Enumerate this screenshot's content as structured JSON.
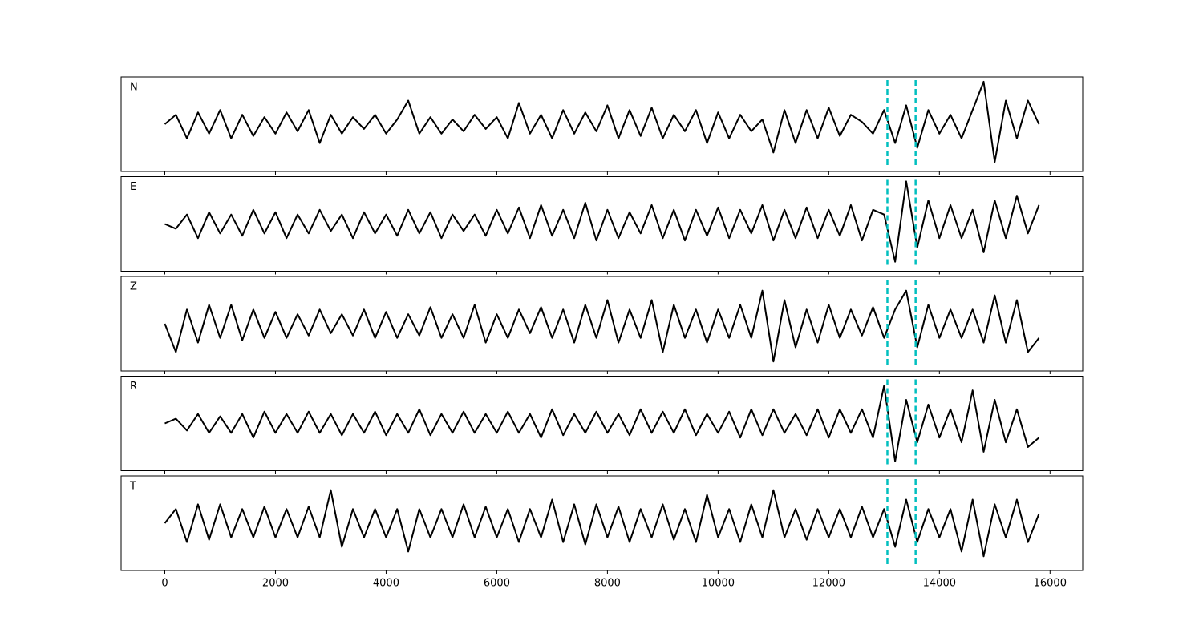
{
  "chart_data": {
    "type": "line",
    "layout": "stacked",
    "x": [
      0,
      200,
      400,
      600,
      800,
      1000,
      1200,
      1400,
      1600,
      1800,
      2000,
      2200,
      2400,
      2600,
      2800,
      3000,
      3200,
      3400,
      3600,
      3800,
      4000,
      4200,
      4400,
      4600,
      4800,
      5000,
      5200,
      5400,
      5600,
      5800,
      6000,
      6200,
      6400,
      6600,
      6800,
      7000,
      7200,
      7400,
      7600,
      7800,
      8000,
      8200,
      8400,
      8600,
      8800,
      9000,
      9200,
      9400,
      9600,
      9800,
      10000,
      10200,
      10400,
      10600,
      10800,
      11000,
      11200,
      11400,
      11600,
      11800,
      12000,
      12200,
      12400,
      12600,
      12800,
      13000,
      13200,
      13400,
      13600,
      13800,
      14000,
      14200,
      14400,
      14600,
      14800,
      15000,
      15200,
      15400,
      15600,
      15800
    ],
    "xlim": [
      -790,
      16590
    ],
    "xticks": [
      0,
      2000,
      4000,
      6000,
      8000,
      10000,
      12000,
      14000,
      16000
    ],
    "ylim": [
      -1,
      1
    ],
    "vlines": {
      "values": [
        13060,
        13570
      ],
      "color": "#00bfbf",
      "style": "dashed"
    },
    "series": [
      {
        "name": "N",
        "color": "#000000",
        "values": [
          0,
          0.2,
          -0.3,
          0.25,
          -0.2,
          0.3,
          -0.3,
          0.2,
          -0.25,
          0.15,
          -0.2,
          0.25,
          -0.15,
          0.3,
          -0.4,
          0.2,
          -0.2,
          0.15,
          -0.1,
          0.2,
          -0.2,
          0.1,
          0.5,
          -0.2,
          0.15,
          -0.2,
          0.1,
          -0.15,
          0.2,
          -0.1,
          0.15,
          -0.3,
          0.45,
          -0.2,
          0.2,
          -0.3,
          0.3,
          -0.2,
          0.25,
          -0.15,
          0.4,
          -0.3,
          0.3,
          -0.25,
          0.35,
          -0.3,
          0.2,
          -0.15,
          0.3,
          -0.4,
          0.25,
          -0.3,
          0.2,
          -0.15,
          0.1,
          -0.6,
          0.3,
          -0.4,
          0.3,
          -0.3,
          0.35,
          -0.25,
          0.2,
          0.05,
          -0.2,
          0.3,
          -0.4,
          0.4,
          -0.5,
          0.3,
          -0.2,
          0.2,
          -0.3,
          0.3,
          0.9,
          -0.8,
          0.5,
          -0.3,
          0.5,
          0
        ]
      },
      {
        "name": "E",
        "color": "#000000",
        "values": [
          0,
          -0.1,
          0.2,
          -0.3,
          0.25,
          -0.2,
          0.2,
          -0.25,
          0.3,
          -0.2,
          0.25,
          -0.3,
          0.2,
          -0.2,
          0.3,
          -0.15,
          0.2,
          -0.3,
          0.25,
          -0.2,
          0.2,
          -0.25,
          0.3,
          -0.2,
          0.25,
          -0.3,
          0.2,
          -0.15,
          0.2,
          -0.25,
          0.3,
          -0.2,
          0.35,
          -0.3,
          0.4,
          -0.25,
          0.3,
          -0.3,
          0.45,
          -0.35,
          0.3,
          -0.3,
          0.25,
          -0.2,
          0.4,
          -0.3,
          0.3,
          -0.35,
          0.3,
          -0.25,
          0.35,
          -0.3,
          0.3,
          -0.2,
          0.4,
          -0.35,
          0.3,
          -0.3,
          0.35,
          -0.3,
          0.3,
          -0.25,
          0.4,
          -0.35,
          0.3,
          0.2,
          -0.8,
          0.9,
          -0.5,
          0.5,
          -0.3,
          0.4,
          -0.3,
          0.3,
          -0.6,
          0.5,
          -0.3,
          0.6,
          -0.2,
          0.4
        ]
      },
      {
        "name": "Z",
        "color": "#000000",
        "values": [
          0,
          -0.6,
          0.3,
          -0.4,
          0.4,
          -0.3,
          0.4,
          -0.35,
          0.3,
          -0.3,
          0.25,
          -0.3,
          0.2,
          -0.25,
          0.3,
          -0.2,
          0.2,
          -0.25,
          0.3,
          -0.3,
          0.25,
          -0.3,
          0.2,
          -0.25,
          0.35,
          -0.3,
          0.2,
          -0.3,
          0.4,
          -0.4,
          0.2,
          -0.3,
          0.3,
          -0.2,
          0.35,
          -0.3,
          0.3,
          -0.4,
          0.4,
          -0.3,
          0.5,
          -0.4,
          0.3,
          -0.3,
          0.5,
          -0.6,
          0.4,
          -0.3,
          0.3,
          -0.4,
          0.3,
          -0.3,
          0.4,
          -0.3,
          0.7,
          -0.8,
          0.5,
          -0.5,
          0.3,
          -0.4,
          0.4,
          -0.3,
          0.3,
          -0.25,
          0.35,
          -0.3,
          0.3,
          0.7,
          -0.5,
          0.4,
          -0.3,
          0.3,
          -0.3,
          0.3,
          -0.4,
          0.6,
          -0.4,
          0.5,
          -0.6,
          -0.3
        ]
      },
      {
        "name": "R",
        "color": "#000000",
        "values": [
          0,
          0.1,
          -0.15,
          0.2,
          -0.2,
          0.15,
          -0.2,
          0.2,
          -0.3,
          0.25,
          -0.2,
          0.2,
          -0.2,
          0.25,
          -0.2,
          0.2,
          -0.25,
          0.2,
          -0.2,
          0.25,
          -0.25,
          0.2,
          -0.2,
          0.3,
          -0.25,
          0.2,
          -0.2,
          0.25,
          -0.2,
          0.2,
          -0.2,
          0.25,
          -0.2,
          0.2,
          -0.3,
          0.3,
          -0.25,
          0.2,
          -0.2,
          0.25,
          -0.2,
          0.2,
          -0.25,
          0.3,
          -0.2,
          0.25,
          -0.2,
          0.3,
          -0.25,
          0.2,
          -0.2,
          0.25,
          -0.3,
          0.3,
          -0.25,
          0.3,
          -0.2,
          0.2,
          -0.25,
          0.3,
          -0.3,
          0.3,
          -0.2,
          0.3,
          -0.3,
          0.8,
          -0.8,
          0.5,
          -0.4,
          0.4,
          -0.3,
          0.3,
          -0.4,
          0.7,
          -0.6,
          0.5,
          -0.4,
          0.3,
          -0.5,
          -0.3
        ]
      },
      {
        "name": "T",
        "color": "#000000",
        "values": [
          0,
          0.3,
          -0.4,
          0.4,
          -0.35,
          0.4,
          -0.3,
          0.3,
          -0.3,
          0.35,
          -0.3,
          0.3,
          -0.3,
          0.35,
          -0.3,
          0.7,
          -0.5,
          0.3,
          -0.3,
          0.3,
          -0.3,
          0.3,
          -0.6,
          0.3,
          -0.3,
          0.3,
          -0.3,
          0.4,
          -0.3,
          0.35,
          -0.3,
          0.3,
          -0.4,
          0.3,
          -0.3,
          0.5,
          -0.4,
          0.4,
          -0.45,
          0.4,
          -0.3,
          0.35,
          -0.4,
          0.3,
          -0.3,
          0.4,
          -0.35,
          0.3,
          -0.4,
          0.6,
          -0.3,
          0.3,
          -0.4,
          0.4,
          -0.3,
          0.7,
          -0.3,
          0.3,
          -0.35,
          0.3,
          -0.3,
          0.3,
          -0.3,
          0.35,
          -0.3,
          0.3,
          -0.5,
          0.5,
          -0.4,
          0.3,
          -0.3,
          0.3,
          -0.6,
          0.5,
          -0.7,
          0.4,
          -0.3,
          0.5,
          -0.4,
          0.2
        ]
      }
    ]
  }
}
